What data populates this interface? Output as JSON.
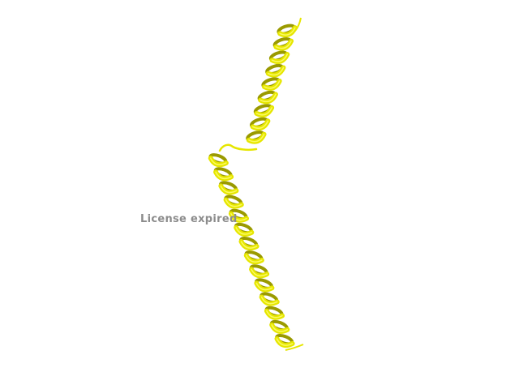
{
  "watermark": {
    "text": "License expired",
    "color": "#8c8c8c"
  },
  "structure": {
    "representation": "cartoon",
    "secondary_structure": [
      "helix",
      "loop",
      "helix"
    ],
    "helix_color": "#e6e600",
    "helix_shade": "#9a9a00",
    "helix_highlight": "#ffff7a",
    "background": "#ffffff"
  }
}
